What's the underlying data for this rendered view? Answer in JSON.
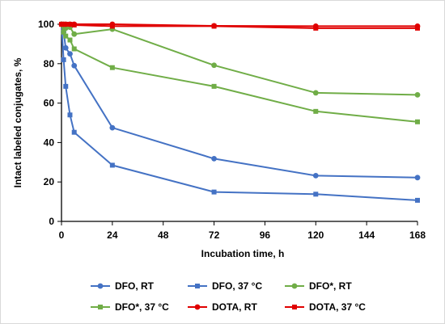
{
  "chart_data": {
    "type": "line",
    "title": "",
    "xlabel": "Incubation time, h",
    "ylabel": "Intact labeled conjugates, %",
    "xlim": [
      0,
      168
    ],
    "ylim": [
      0,
      100
    ],
    "xticks": [
      0,
      24,
      48,
      72,
      96,
      120,
      144,
      168
    ],
    "yticks": [
      0,
      20,
      40,
      60,
      80,
      100
    ],
    "grid": false,
    "legend_position": "bottom",
    "series": [
      {
        "name": "DFO, RT",
        "marker": "circle",
        "color": "#4472c4",
        "x": [
          0,
          1,
          2,
          4,
          6,
          24,
          72,
          120,
          168
        ],
        "y": [
          100,
          96,
          88,
          85,
          79,
          47.5,
          31.8,
          23.2,
          22.2
        ]
      },
      {
        "name": "DFO, 37 °C",
        "marker": "square",
        "color": "#4472c4",
        "x": [
          0,
          1,
          2,
          4,
          6,
          24,
          72,
          120,
          168
        ],
        "y": [
          100,
          82,
          68.5,
          54,
          45.2,
          28.5,
          14.9,
          13.8,
          10.7
        ]
      },
      {
        "name": "DFO*, RT",
        "marker": "circle",
        "color": "#70ad47",
        "x": [
          0,
          1,
          2,
          4,
          6,
          24,
          72,
          120,
          168
        ],
        "y": [
          100,
          99,
          98,
          98.5,
          95,
          97.5,
          79.2,
          65.2,
          64.2
        ]
      },
      {
        "name": "DFO*, 37 °C",
        "marker": "square",
        "color": "#70ad47",
        "x": [
          0,
          1,
          2,
          4,
          6,
          24,
          72,
          120,
          168
        ],
        "y": [
          100,
          96,
          94,
          92,
          87.5,
          78,
          68.5,
          55.8,
          50.5
        ]
      },
      {
        "name": "DOTA, RT",
        "marker": "circle",
        "color": "#e00000",
        "x": [
          0,
          1,
          2,
          4,
          6,
          24,
          72,
          120,
          168
        ],
        "y": [
          100,
          100,
          100,
          100,
          100,
          100,
          99.2,
          99,
          99
        ]
      },
      {
        "name": "DOTA, 37 °C",
        "marker": "square",
        "color": "#e00000",
        "x": [
          0,
          1,
          2,
          4,
          6,
          24,
          72,
          120,
          168
        ],
        "y": [
          100,
          100,
          100,
          100,
          99.6,
          99,
          99,
          98,
          98
        ]
      }
    ]
  }
}
